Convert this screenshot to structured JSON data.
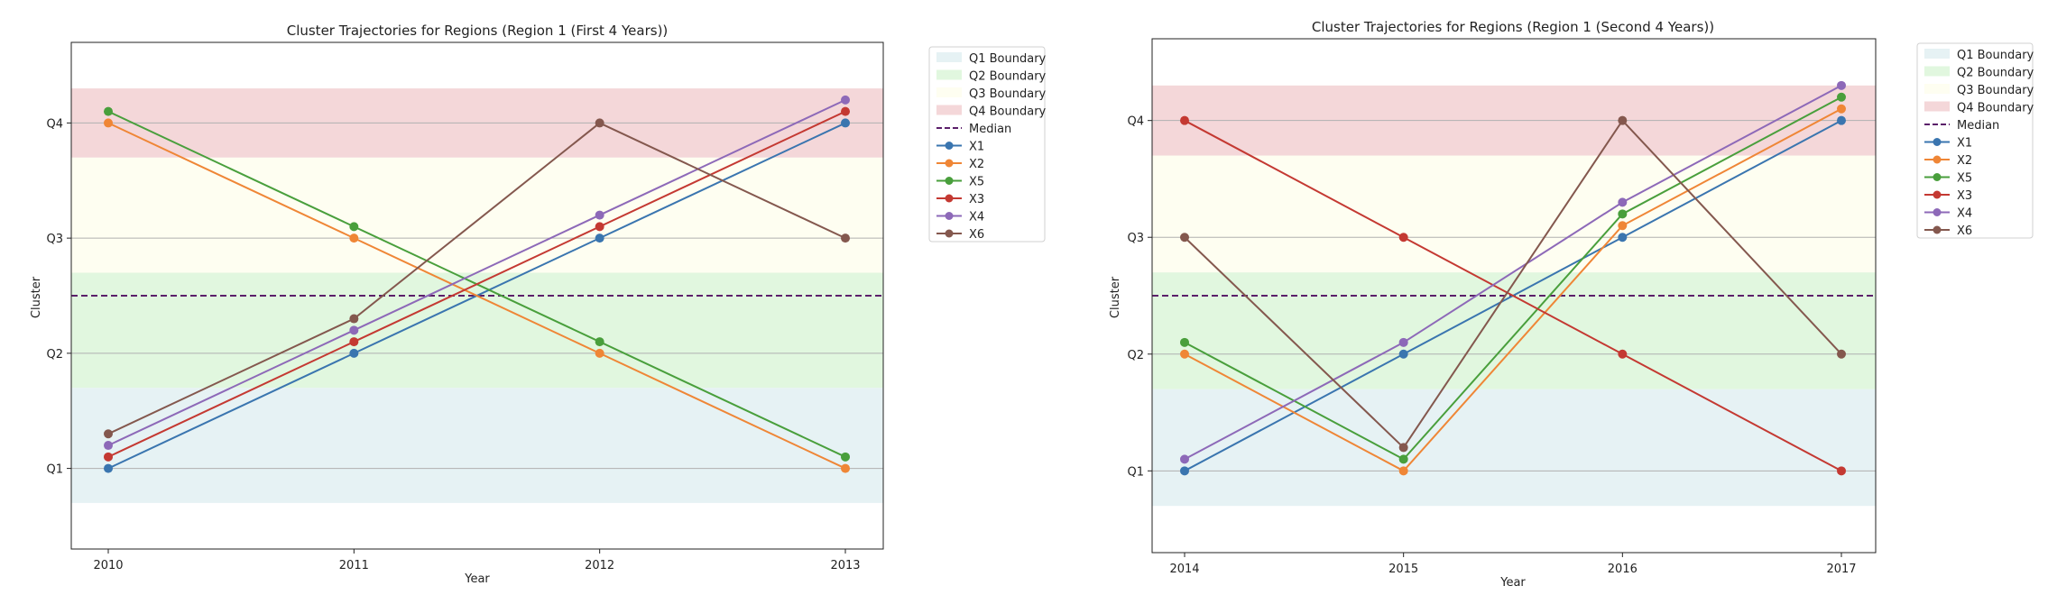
{
  "chart_data": [
    {
      "type": "line",
      "title": "Cluster Trajectories for Regions (Region 1 (First 4 Years))",
      "xlabel": "Year",
      "ylabel": "Cluster",
      "x": [
        "2010",
        "2011",
        "2012",
        "2013"
      ],
      "yticks": [
        {
          "value": 1,
          "label": "Q1"
        },
        {
          "value": 2,
          "label": "Q2"
        },
        {
          "value": 3,
          "label": "Q3"
        },
        {
          "value": 4,
          "label": "Q4"
        }
      ],
      "ylim": [
        0.3,
        4.7
      ],
      "median": 2.5,
      "bands": [
        {
          "name": "Q1 Boundary",
          "from": 0.7,
          "to": 1.7,
          "color": "#e6f2f4"
        },
        {
          "name": "Q2 Boundary",
          "from": 1.7,
          "to": 2.7,
          "color": "#e1f7df"
        },
        {
          "name": "Q3 Boundary",
          "from": 2.7,
          "to": 3.7,
          "color": "#fefef1"
        },
        {
          "name": "Q4 Boundary",
          "from": 3.7,
          "to": 4.3,
          "color": "#f4d7d9"
        }
      ],
      "series": [
        {
          "name": "X1",
          "color": "#3a75af",
          "values": [
            1.0,
            2.0,
            3.0,
            4.0
          ]
        },
        {
          "name": "X2",
          "color": "#ef8636",
          "values": [
            4.0,
            3.0,
            2.0,
            1.0
          ]
        },
        {
          "name": "X5",
          "color": "#499f3c",
          "values": [
            4.1,
            3.1,
            2.1,
            1.1
          ]
        },
        {
          "name": "X3",
          "color": "#c43932",
          "values": [
            1.1,
            2.1,
            3.1,
            4.1
          ]
        },
        {
          "name": "X4",
          "color": "#8d69b8",
          "values": [
            1.2,
            2.2,
            3.2,
            4.2
          ]
        },
        {
          "name": "X6",
          "color": "#84584e",
          "values": [
            1.3,
            2.3,
            4.0,
            3.0
          ]
        }
      ],
      "legend": [
        "Q1 Boundary",
        "Q2 Boundary",
        "Q3 Boundary",
        "Q4 Boundary",
        "Median",
        "X1",
        "X2",
        "X5",
        "X3",
        "X4",
        "X6"
      ],
      "median_label": "Median",
      "median_color": "#5b1f6a",
      "grid": "horizontal",
      "legend_placement": "outside right"
    },
    {
      "type": "line",
      "title": "Cluster Trajectories for Regions (Region 1 (Second 4 Years))",
      "xlabel": "Year",
      "ylabel": "Cluster",
      "x": [
        "2014",
        "2015",
        "2016",
        "2017"
      ],
      "yticks": [
        {
          "value": 1,
          "label": "Q1"
        },
        {
          "value": 2,
          "label": "Q2"
        },
        {
          "value": 3,
          "label": "Q3"
        },
        {
          "value": 4,
          "label": "Q4"
        }
      ],
      "ylim": [
        0.3,
        4.7
      ],
      "median": 2.5,
      "bands": [
        {
          "name": "Q1 Boundary",
          "from": 0.7,
          "to": 1.7,
          "color": "#e6f2f4"
        },
        {
          "name": "Q2 Boundary",
          "from": 1.7,
          "to": 2.7,
          "color": "#e1f7df"
        },
        {
          "name": "Q3 Boundary",
          "from": 2.7,
          "to": 3.7,
          "color": "#fefef1"
        },
        {
          "name": "Q4 Boundary",
          "from": 3.7,
          "to": 4.3,
          "color": "#f4d7d9"
        }
      ],
      "series": [
        {
          "name": "X1",
          "color": "#3a75af",
          "values": [
            1.0,
            2.0,
            3.0,
            4.0
          ]
        },
        {
          "name": "X2",
          "color": "#ef8636",
          "values": [
            2.0,
            1.0,
            3.1,
            4.1
          ]
        },
        {
          "name": "X5",
          "color": "#499f3c",
          "values": [
            2.1,
            1.1,
            3.2,
            4.2
          ]
        },
        {
          "name": "X3",
          "color": "#c43932",
          "values": [
            4.0,
            3.0,
            2.0,
            1.0
          ]
        },
        {
          "name": "X4",
          "color": "#8d69b8",
          "values": [
            1.1,
            2.1,
            3.3,
            4.3
          ]
        },
        {
          "name": "X6",
          "color": "#84584e",
          "values": [
            3.0,
            1.2,
            4.0,
            2.0
          ]
        }
      ],
      "legend": [
        "Q1 Boundary",
        "Q2 Boundary",
        "Q3 Boundary",
        "Q4 Boundary",
        "Median",
        "X1",
        "X2",
        "X5",
        "X3",
        "X4",
        "X6"
      ],
      "median_label": "Median",
      "median_color": "#5b1f6a",
      "grid": "horizontal",
      "legend_placement": "outside right"
    }
  ]
}
